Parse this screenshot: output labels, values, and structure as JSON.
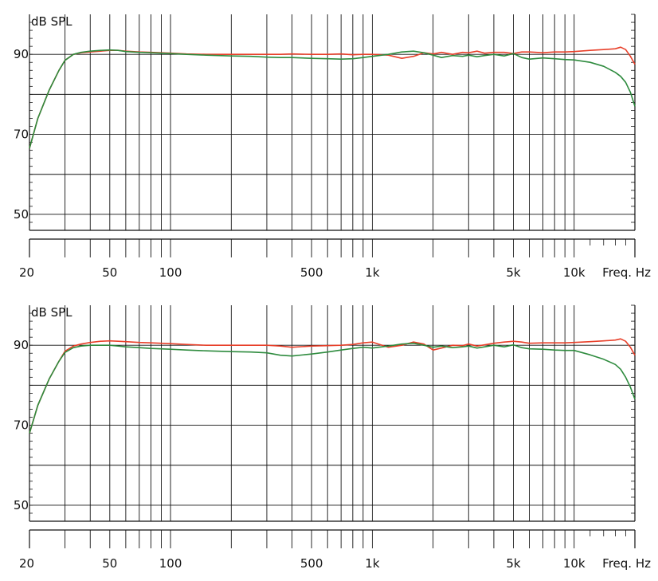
{
  "colors": {
    "series_red": "#e8402a",
    "series_green": "#2e8b3e",
    "grid": "#111111"
  },
  "chart_data": [
    {
      "type": "line",
      "title": "",
      "ylabel": "dB SPL",
      "xlabel": "Freq. Hz",
      "xscale": "log",
      "xlim": [
        20,
        20000
      ],
      "ylim": [
        46,
        100
      ],
      "yticks": [
        50,
        70,
        90
      ],
      "xticks": [
        {
          "value": 20,
          "label": "20"
        },
        {
          "value": 50,
          "label": "50"
        },
        {
          "value": 100,
          "label": "100"
        },
        {
          "value": 500,
          "label": "500"
        },
        {
          "value": 1000,
          "label": "1k"
        },
        {
          "value": 5000,
          "label": "5k"
        },
        {
          "value": 10000,
          "label": "10k"
        }
      ],
      "grid": true,
      "series": [
        {
          "color": "#e8402a",
          "x": [
            20,
            22,
            25,
            28,
            30,
            33,
            36,
            40,
            45,
            50,
            55,
            60,
            70,
            80,
            100,
            120,
            150,
            200,
            250,
            300,
            350,
            400,
            500,
            600,
            700,
            800,
            900,
            1000,
            1200,
            1400,
            1600,
            1800,
            2000,
            2200,
            2500,
            2800,
            3000,
            3300,
            3600,
            4000,
            4500,
            5000,
            5500,
            6000,
            7000,
            8000,
            9000,
            10000,
            12000,
            14000,
            16000,
            17000,
            18000,
            19000,
            20000
          ],
          "y": [
            66.5,
            74,
            81,
            86,
            88.5,
            90,
            90.4,
            90.6,
            90.8,
            91,
            91,
            90.8,
            90.6,
            90.5,
            90.3,
            90.1,
            90,
            90,
            90,
            90,
            90,
            90.1,
            90,
            90,
            90.1,
            89.9,
            90,
            90,
            89.8,
            89,
            89.5,
            90.4,
            90.1,
            90.5,
            90,
            90.5,
            90.4,
            90.8,
            90.3,
            90.5,
            90.5,
            90.2,
            90.6,
            90.6,
            90.4,
            90.6,
            90.6,
            90.7,
            91,
            91.2,
            91.4,
            91.8,
            91.2,
            89.5,
            87.5
          ]
        },
        {
          "color": "#2e8b3e",
          "x": [
            20,
            22,
            25,
            28,
            30,
            33,
            36,
            40,
            45,
            50,
            55,
            60,
            70,
            80,
            100,
            120,
            150,
            200,
            250,
            300,
            350,
            400,
            500,
            600,
            700,
            800,
            900,
            1000,
            1200,
            1400,
            1600,
            1800,
            2000,
            2200,
            2500,
            2800,
            3000,
            3300,
            3600,
            4000,
            4500,
            5000,
            5500,
            6000,
            7000,
            8000,
            9000,
            10000,
            12000,
            14000,
            16000,
            17000,
            18000,
            19000,
            20000
          ],
          "y": [
            66.5,
            74,
            81,
            86,
            88.5,
            90,
            90.5,
            90.8,
            91,
            91.1,
            91,
            90.7,
            90.5,
            90.4,
            90.2,
            90,
            89.8,
            89.6,
            89.5,
            89.3,
            89.2,
            89.2,
            89,
            88.9,
            88.8,
            88.9,
            89.2,
            89.5,
            90,
            90.6,
            90.8,
            90.4,
            89.8,
            89.2,
            89.7,
            89.5,
            89.8,
            89.4,
            89.7,
            90,
            89.6,
            90.2,
            89.2,
            88.8,
            89.1,
            88.9,
            88.7,
            88.6,
            88,
            87,
            85.5,
            84.5,
            83,
            80.5,
            77
          ]
        }
      ]
    },
    {
      "type": "line",
      "title": "",
      "ylabel": "dB SPL",
      "xlabel": "Freq. Hz",
      "xscale": "log",
      "xlim": [
        20,
        20000
      ],
      "ylim": [
        46,
        100
      ],
      "yticks": [
        50,
        70,
        90
      ],
      "xticks": [
        {
          "value": 20,
          "label": "20"
        },
        {
          "value": 50,
          "label": "50"
        },
        {
          "value": 100,
          "label": "100"
        },
        {
          "value": 500,
          "label": "500"
        },
        {
          "value": 1000,
          "label": "1k"
        },
        {
          "value": 5000,
          "label": "5k"
        },
        {
          "value": 10000,
          "label": "10k"
        }
      ],
      "grid": true,
      "series": [
        {
          "color": "#e8402a",
          "x": [
            20,
            22,
            25,
            28,
            30,
            33,
            36,
            40,
            45,
            50,
            55,
            60,
            70,
            80,
            100,
            120,
            150,
            200,
            250,
            300,
            350,
            400,
            500,
            600,
            700,
            800,
            900,
            1000,
            1200,
            1400,
            1600,
            1800,
            2000,
            2200,
            2500,
            2800,
            3000,
            3300,
            3600,
            4000,
            4500,
            5000,
            5500,
            6000,
            7000,
            8000,
            9000,
            10000,
            12000,
            14000,
            16000,
            17000,
            18000,
            19000,
            20000
          ],
          "y": [
            68,
            75,
            81.5,
            86,
            88.5,
            89.8,
            90.3,
            90.7,
            91,
            91.1,
            91,
            90.9,
            90.7,
            90.6,
            90.4,
            90.2,
            90,
            90,
            90,
            90,
            89.8,
            89.5,
            89.8,
            89.9,
            90,
            90.2,
            90.6,
            90.8,
            89.5,
            90,
            90.8,
            90.3,
            88.8,
            89.3,
            90,
            89.9,
            90.3,
            89.8,
            90.1,
            90.5,
            90.8,
            91,
            90.8,
            90.5,
            90.6,
            90.6,
            90.6,
            90.7,
            90.9,
            91.1,
            91.3,
            91.6,
            91,
            89.5,
            87.5
          ]
        },
        {
          "color": "#2e8b3e",
          "x": [
            20,
            22,
            25,
            28,
            30,
            33,
            36,
            40,
            45,
            50,
            55,
            60,
            70,
            80,
            100,
            120,
            150,
            200,
            250,
            300,
            350,
            400,
            500,
            600,
            700,
            800,
            900,
            1000,
            1200,
            1400,
            1600,
            1800,
            2000,
            2200,
            2500,
            2800,
            3000,
            3300,
            3600,
            4000,
            4500,
            5000,
            5500,
            6000,
            7000,
            8000,
            9000,
            10000,
            12000,
            14000,
            16000,
            17000,
            18000,
            19000,
            20000
          ],
          "y": [
            68,
            75,
            81.5,
            86,
            88.2,
            89.4,
            89.8,
            90,
            90,
            90,
            89.8,
            89.6,
            89.4,
            89.2,
            89,
            88.8,
            88.6,
            88.4,
            88.3,
            88.1,
            87.5,
            87.3,
            87.8,
            88.3,
            88.8,
            89.2,
            89.5,
            89.3,
            89.8,
            90.3,
            90.5,
            90,
            89.5,
            89.8,
            89.4,
            89.6,
            89.8,
            89.3,
            89.6,
            90,
            89.6,
            90.1,
            89.4,
            89.1,
            89,
            88.8,
            88.7,
            88.7,
            87.6,
            86.5,
            85.2,
            84,
            82,
            79.5,
            76.5
          ]
        }
      ]
    }
  ]
}
